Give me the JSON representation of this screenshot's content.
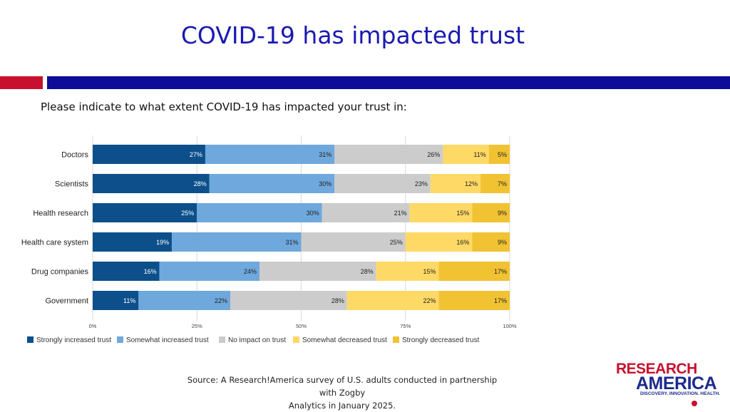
{
  "slide": {
    "title": "COVID-19 has impacted trust",
    "subtitle": "Please indicate to what extent COVID-19 has impacted your trust in:",
    "source_line1": "Source: A Research!America survey of U.S. adults conducted in partnership with Zogby",
    "source_line2": "Analytics in January 2025.",
    "logo_line1": "RESEARCH",
    "logo_line2": "AMERICA",
    "logo_tagline": "DISCOVERY. INNOVATION. HEALTH.",
    "accent_red": "#c8102e",
    "accent_blue": "#0d0d9a"
  },
  "chart_data": {
    "type": "bar",
    "orientation": "horizontal",
    "stacked": true,
    "categories": [
      "Doctors",
      "Scientists",
      "Health research",
      "Health care system",
      "Drug companies",
      "Government"
    ],
    "series": [
      {
        "name": "Strongly increased trust",
        "color": "#0d4f8b",
        "values": [
          27,
          28,
          25,
          19,
          16,
          11
        ]
      },
      {
        "name": "Somewhat increased trust",
        "color": "#6fa8dc",
        "values": [
          31,
          30,
          30,
          31,
          24,
          22
        ]
      },
      {
        "name": "No impact on trust",
        "color": "#cccccc",
        "values": [
          26,
          23,
          21,
          25,
          28,
          28
        ]
      },
      {
        "name": "Somewhat decreased trust",
        "color": "#ffd966",
        "values": [
          11,
          12,
          15,
          16,
          15,
          22
        ]
      },
      {
        "name": "Strongly decreased trust",
        "color": "#f1c232",
        "values": [
          5,
          7,
          9,
          9,
          17,
          17
        ]
      }
    ],
    "value_suffix": "%",
    "xlim": [
      0,
      100
    ],
    "xticks": [
      "0%",
      "25%",
      "50%",
      "75%",
      "100%"
    ],
    "grid": true,
    "legend": "bottom"
  }
}
